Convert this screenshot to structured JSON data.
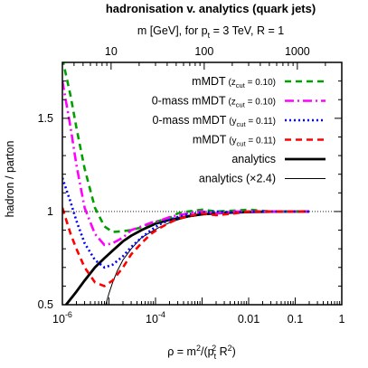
{
  "chart_data": {
    "type": "line",
    "title": "hadronisation v. analytics (quark jets)",
    "top_axis_label": "m [GeV], for p_t = 3 TeV, R = 1",
    "top_axis_label_parts": {
      "pre": "m [GeV], for p",
      "sub": "t",
      "post": " = 3 TeV, R = 1"
    },
    "xlabel": "ρ = m²/(p_t² R²)",
    "xlabel_parts": {
      "pre": "ρ = m",
      "sup1": "2",
      "mid": "/(p",
      "sub": "t",
      "sup2": "2",
      "post": " R",
      "sup3": "2",
      "end": ")"
    },
    "ylabel": "hadron / parton",
    "x_scale": "log",
    "xlim": [
      1e-06,
      1
    ],
    "ylim": [
      0.5,
      1.8
    ],
    "x_ticks": [
      {
        "value": 1e-06,
        "label": "10",
        "exp": "-6"
      },
      {
        "value": 0.0001,
        "label": "10",
        "exp": "-4"
      },
      {
        "value": 0.01,
        "label": "0.01",
        "exp": ""
      },
      {
        "value": 0.1,
        "label": "0.1",
        "exp": ""
      },
      {
        "value": 1,
        "label": "1",
        "exp": ""
      }
    ],
    "top_ticks": [
      {
        "value": 10,
        "label": "10"
      },
      {
        "value": 100,
        "label": "100"
      },
      {
        "value": 1000,
        "label": "1000"
      }
    ],
    "y_ticks": [
      {
        "value": 0.5,
        "label": "0.5"
      },
      {
        "value": 1,
        "label": "1"
      },
      {
        "value": 1.5,
        "label": "1.5"
      }
    ],
    "reference_line": {
      "y": 1,
      "style": "dotted"
    },
    "legend_position": "top-right",
    "series": [
      {
        "name": "mMDT",
        "cut_label": "z",
        "cut_sub": "cut",
        "cut_value": " = 0.10",
        "color": "#00a000",
        "style": "dashed",
        "x": [
          1e-06,
          1.5e-06,
          2e-06,
          3e-06,
          5e-06,
          8e-06,
          1.2e-05,
          2e-05,
          3e-05,
          5e-05,
          8e-05,
          0.00012,
          0.0002,
          0.0003,
          0.0005,
          0.001,
          0.002,
          0.005,
          0.01,
          0.03,
          0.1,
          0.2
        ],
        "y": [
          1.82,
          1.62,
          1.45,
          1.23,
          1.02,
          0.92,
          0.89,
          0.895,
          0.9,
          0.915,
          0.935,
          0.95,
          0.965,
          0.99,
          1.0,
          1.01,
          1.0,
          1.005,
          1.01,
          1.0,
          1.0,
          1.0
        ]
      },
      {
        "name": "0-mass mMDT",
        "cut_label": "z",
        "cut_sub": "cut",
        "cut_value": " = 0.10",
        "color": "#ff00ff",
        "style": "dash-dot",
        "x": [
          1e-06,
          1.5e-06,
          2e-06,
          3e-06,
          5e-06,
          8e-06,
          1.2e-05,
          2e-05,
          3e-05,
          5e-05,
          8e-05,
          0.00012,
          0.0002,
          0.0003,
          0.0005,
          0.001,
          0.002,
          0.005,
          0.01,
          0.03,
          0.1,
          0.2
        ],
        "y": [
          1.7,
          1.45,
          1.25,
          1.02,
          0.88,
          0.82,
          0.83,
          0.86,
          0.9,
          0.92,
          0.94,
          0.95,
          0.97,
          0.98,
          0.99,
          1.0,
          0.99,
          1.0,
          1.0,
          1.0,
          1.0,
          1.0
        ]
      },
      {
        "name": "0-mass mMDT",
        "cut_label": "y",
        "cut_sub": "cut",
        "cut_value": " = 0.11",
        "color": "#0000ff",
        "style": "dotted",
        "x": [
          1e-06,
          1.5e-06,
          2e-06,
          3e-06,
          5e-06,
          8e-06,
          1.2e-05,
          2e-05,
          3e-05,
          5e-05,
          8e-05,
          0.00012,
          0.0002,
          0.0003,
          0.0005,
          0.001,
          0.002,
          0.005,
          0.01,
          0.03,
          0.1,
          0.2
        ],
        "y": [
          1.18,
          1.05,
          0.95,
          0.83,
          0.74,
          0.7,
          0.715,
          0.76,
          0.81,
          0.86,
          0.9,
          0.93,
          0.955,
          0.97,
          0.985,
          0.995,
          1.0,
          0.995,
          1.0,
          1.0,
          1.0,
          1.0
        ]
      },
      {
        "name": "mMDT",
        "cut_label": "y",
        "cut_sub": "cut",
        "cut_value": " = 0.11",
        "color": "#ff0000",
        "style": "dashed",
        "x": [
          1e-06,
          1.5e-06,
          2e-06,
          3e-06,
          5e-06,
          8e-06,
          1.2e-05,
          2e-05,
          3e-05,
          5e-05,
          8e-05,
          0.00012,
          0.0002,
          0.0003,
          0.0005,
          0.001,
          0.002,
          0.005,
          0.01,
          0.03,
          0.1,
          0.2
        ],
        "y": [
          1.02,
          0.88,
          0.8,
          0.7,
          0.62,
          0.6,
          0.63,
          0.7,
          0.77,
          0.83,
          0.88,
          0.91,
          0.94,
          0.96,
          0.975,
          0.99,
          0.98,
          0.99,
          1.0,
          1.0,
          1.0,
          1.0
        ]
      },
      {
        "name": "analytics",
        "cut_label": "",
        "cut_sub": "",
        "cut_value": "",
        "color": "#000000",
        "style": "solid-thick",
        "x": [
          1.2e-06,
          2e-06,
          3e-06,
          5e-06,
          8e-06,
          1.2e-05,
          2e-05,
          3e-05,
          5e-05,
          0.0001,
          0.0002,
          0.0005,
          0.001,
          0.003,
          0.01,
          0.03,
          0.1,
          0.2
        ],
        "y": [
          0.5,
          0.57,
          0.63,
          0.7,
          0.75,
          0.79,
          0.84,
          0.87,
          0.9,
          0.935,
          0.955,
          0.975,
          0.985,
          0.993,
          0.997,
          0.999,
          1.0,
          1.0
        ]
      },
      {
        "name": "analytics (×2.4)",
        "cut_label": "",
        "cut_sub": "",
        "cut_value": "",
        "color": "#000000",
        "style": "solid-thin",
        "x": [
          8.5e-06,
          1e-05,
          1.2e-05,
          1.5e-05,
          2e-05,
          3e-05,
          5e-05,
          8e-05,
          0.00012,
          0.0002,
          0.0003,
          0.0005,
          0.001,
          0.003,
          0.01,
          0.03,
          0.1,
          0.2
        ],
        "y": [
          0.5,
          0.56,
          0.62,
          0.68,
          0.74,
          0.8,
          0.86,
          0.89,
          0.915,
          0.94,
          0.955,
          0.97,
          0.982,
          0.992,
          0.997,
          0.999,
          1.0,
          1.0
        ]
      }
    ]
  }
}
